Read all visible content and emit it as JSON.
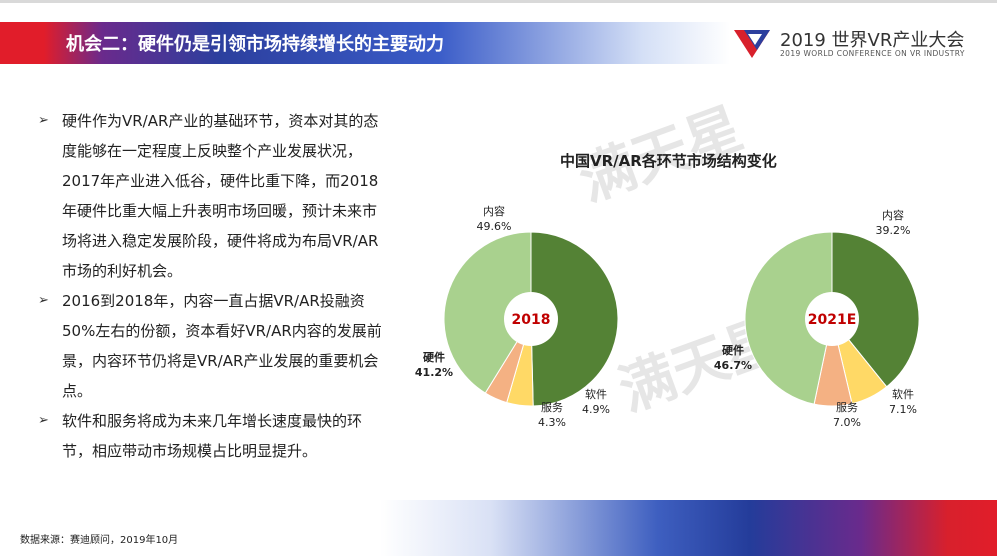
{
  "header": {
    "title": "机会二：硬件仍是引领市场持续增长的主要动力",
    "logo_main": "2019 世界VR产业大会",
    "logo_sub": "2019 WORLD CONFERENCE ON VR INDUSTRY"
  },
  "bullets": [
    "硬件作为VR/AR产业的基础环节，资本对其的态度能够在一定程度上反映整个产业发展状况，2017年产业进入低谷，硬件比重下降，而2018年硬件比重大幅上升表明市场回暖，预计未来市场将进入稳定发展阶段，硬件将成为布局VR/AR市场的利好机会。",
    "2016到2018年，内容一直占据VR/AR投融资50%左右的份额，资本看好VR/AR内容的发展前景，内容环节仍将是VR/AR产业发展的重要机会点。",
    "软件和服务将成为未来几年增长速度最快的环节，相应带动市场规模占比明显提升。"
  ],
  "watermark": "满天星",
  "source": "数据来源：赛迪顾问，2019年10月",
  "chart_data": {
    "type": "pie",
    "title": "中国VR/AR各环节市场结构变化",
    "charts": [
      {
        "center_label": "2018",
        "slices": [
          {
            "name": "内容",
            "value": 49.6,
            "label": "49.6%",
            "color": "#548235"
          },
          {
            "name": "软件",
            "value": 4.9,
            "label": "4.9%",
            "color": "#ffd966"
          },
          {
            "name": "服务",
            "value": 4.3,
            "label": "4.3%",
            "color": "#f4b183"
          },
          {
            "name": "硬件",
            "value": 41.2,
            "label": "41.2%",
            "color": "#a9d18e"
          }
        ]
      },
      {
        "center_label": "2021E",
        "slices": [
          {
            "name": "内容",
            "value": 39.2,
            "label": "39.2%",
            "color": "#548235"
          },
          {
            "name": "软件",
            "value": 7.1,
            "label": "7.1%",
            "color": "#ffd966"
          },
          {
            "name": "服务",
            "value": 7.0,
            "label": "7.0%",
            "color": "#f4b183"
          },
          {
            "name": "硬件",
            "value": 46.7,
            "label": "46.7%",
            "color": "#a9d18e"
          }
        ]
      }
    ]
  }
}
